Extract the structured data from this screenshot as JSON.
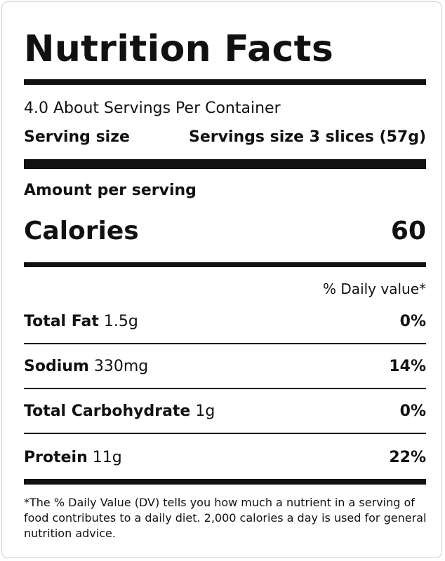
{
  "label": {
    "title": "Nutrition Facts",
    "servings_per_container": "4.0 About Servings Per Container",
    "serving_size_label": "Serving size",
    "serving_size_value": "Servings size 3 slices (57g)",
    "amount_per_serving": "Amount per serving",
    "calories_label": "Calories",
    "calories_value": "60",
    "daily_value_header": "% Daily value*",
    "nutrients": [
      {
        "name": "Total Fat",
        "amount": "1.5g",
        "percent_dv": "0%"
      },
      {
        "name": "Sodium",
        "amount": "330mg",
        "percent_dv": "14%"
      },
      {
        "name": "Total Carbohydrate",
        "amount": "1g",
        "percent_dv": "0%"
      },
      {
        "name": "Protein",
        "amount": "11g",
        "percent_dv": "22%"
      }
    ],
    "footnote": "*The % Daily Value (DV) tells you how much a nutrient in a serving of food contributes to a daily diet. 2,000 calories a day is used for general nutrition advice."
  }
}
